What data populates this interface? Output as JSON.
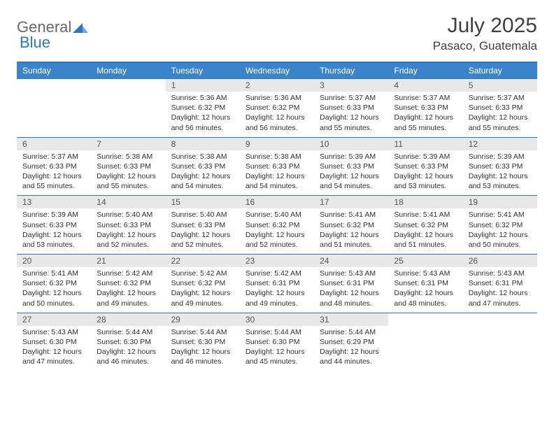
{
  "brand": {
    "general": "General",
    "blue": "Blue"
  },
  "title": "July 2025",
  "location": "Pasaco, Guatemala",
  "colors": {
    "header_bg": "#3a84cc",
    "header_border": "#2f76bb",
    "daynum_bg": "#e8e8e8",
    "text": "#303030",
    "logo_gray": "#686868",
    "logo_blue": "#2f76bb"
  },
  "day_headers": [
    "Sunday",
    "Monday",
    "Tuesday",
    "Wednesday",
    "Thursday",
    "Friday",
    "Saturday"
  ],
  "weeks": [
    {
      "nums": [
        "",
        "",
        "1",
        "2",
        "3",
        "4",
        "5"
      ],
      "cells": [
        null,
        null,
        {
          "sr": "Sunrise: 5:36 AM",
          "ss": "Sunset: 6:32 PM",
          "dl": "Daylight: 12 hours and 56 minutes."
        },
        {
          "sr": "Sunrise: 5:36 AM",
          "ss": "Sunset: 6:32 PM",
          "dl": "Daylight: 12 hours and 56 minutes."
        },
        {
          "sr": "Sunrise: 5:37 AM",
          "ss": "Sunset: 6:33 PM",
          "dl": "Daylight: 12 hours and 55 minutes."
        },
        {
          "sr": "Sunrise: 5:37 AM",
          "ss": "Sunset: 6:33 PM",
          "dl": "Daylight: 12 hours and 55 minutes."
        },
        {
          "sr": "Sunrise: 5:37 AM",
          "ss": "Sunset: 6:33 PM",
          "dl": "Daylight: 12 hours and 55 minutes."
        }
      ]
    },
    {
      "nums": [
        "6",
        "7",
        "8",
        "9",
        "10",
        "11",
        "12"
      ],
      "cells": [
        {
          "sr": "Sunrise: 5:37 AM",
          "ss": "Sunset: 6:33 PM",
          "dl": "Daylight: 12 hours and 55 minutes."
        },
        {
          "sr": "Sunrise: 5:38 AM",
          "ss": "Sunset: 6:33 PM",
          "dl": "Daylight: 12 hours and 55 minutes."
        },
        {
          "sr": "Sunrise: 5:38 AM",
          "ss": "Sunset: 6:33 PM",
          "dl": "Daylight: 12 hours and 54 minutes."
        },
        {
          "sr": "Sunrise: 5:38 AM",
          "ss": "Sunset: 6:33 PM",
          "dl": "Daylight: 12 hours and 54 minutes."
        },
        {
          "sr": "Sunrise: 5:39 AM",
          "ss": "Sunset: 6:33 PM",
          "dl": "Daylight: 12 hours and 54 minutes."
        },
        {
          "sr": "Sunrise: 5:39 AM",
          "ss": "Sunset: 6:33 PM",
          "dl": "Daylight: 12 hours and 53 minutes."
        },
        {
          "sr": "Sunrise: 5:39 AM",
          "ss": "Sunset: 6:33 PM",
          "dl": "Daylight: 12 hours and 53 minutes."
        }
      ]
    },
    {
      "nums": [
        "13",
        "14",
        "15",
        "16",
        "17",
        "18",
        "19"
      ],
      "cells": [
        {
          "sr": "Sunrise: 5:39 AM",
          "ss": "Sunset: 6:33 PM",
          "dl": "Daylight: 12 hours and 53 minutes."
        },
        {
          "sr": "Sunrise: 5:40 AM",
          "ss": "Sunset: 6:33 PM",
          "dl": "Daylight: 12 hours and 52 minutes."
        },
        {
          "sr": "Sunrise: 5:40 AM",
          "ss": "Sunset: 6:33 PM",
          "dl": "Daylight: 12 hours and 52 minutes."
        },
        {
          "sr": "Sunrise: 5:40 AM",
          "ss": "Sunset: 6:32 PM",
          "dl": "Daylight: 12 hours and 52 minutes."
        },
        {
          "sr": "Sunrise: 5:41 AM",
          "ss": "Sunset: 6:32 PM",
          "dl": "Daylight: 12 hours and 51 minutes."
        },
        {
          "sr": "Sunrise: 5:41 AM",
          "ss": "Sunset: 6:32 PM",
          "dl": "Daylight: 12 hours and 51 minutes."
        },
        {
          "sr": "Sunrise: 5:41 AM",
          "ss": "Sunset: 6:32 PM",
          "dl": "Daylight: 12 hours and 50 minutes."
        }
      ]
    },
    {
      "nums": [
        "20",
        "21",
        "22",
        "23",
        "24",
        "25",
        "26"
      ],
      "cells": [
        {
          "sr": "Sunrise: 5:41 AM",
          "ss": "Sunset: 6:32 PM",
          "dl": "Daylight: 12 hours and 50 minutes."
        },
        {
          "sr": "Sunrise: 5:42 AM",
          "ss": "Sunset: 6:32 PM",
          "dl": "Daylight: 12 hours and 49 minutes."
        },
        {
          "sr": "Sunrise: 5:42 AM",
          "ss": "Sunset: 6:32 PM",
          "dl": "Daylight: 12 hours and 49 minutes."
        },
        {
          "sr": "Sunrise: 5:42 AM",
          "ss": "Sunset: 6:31 PM",
          "dl": "Daylight: 12 hours and 49 minutes."
        },
        {
          "sr": "Sunrise: 5:43 AM",
          "ss": "Sunset: 6:31 PM",
          "dl": "Daylight: 12 hours and 48 minutes."
        },
        {
          "sr": "Sunrise: 5:43 AM",
          "ss": "Sunset: 6:31 PM",
          "dl": "Daylight: 12 hours and 48 minutes."
        },
        {
          "sr": "Sunrise: 5:43 AM",
          "ss": "Sunset: 6:31 PM",
          "dl": "Daylight: 12 hours and 47 minutes."
        }
      ]
    },
    {
      "nums": [
        "27",
        "28",
        "29",
        "30",
        "31",
        "",
        ""
      ],
      "cells": [
        {
          "sr": "Sunrise: 5:43 AM",
          "ss": "Sunset: 6:30 PM",
          "dl": "Daylight: 12 hours and 47 minutes."
        },
        {
          "sr": "Sunrise: 5:44 AM",
          "ss": "Sunset: 6:30 PM",
          "dl": "Daylight: 12 hours and 46 minutes."
        },
        {
          "sr": "Sunrise: 5:44 AM",
          "ss": "Sunset: 6:30 PM",
          "dl": "Daylight: 12 hours and 46 minutes."
        },
        {
          "sr": "Sunrise: 5:44 AM",
          "ss": "Sunset: 6:30 PM",
          "dl": "Daylight: 12 hours and 45 minutes."
        },
        {
          "sr": "Sunrise: 5:44 AM",
          "ss": "Sunset: 6:29 PM",
          "dl": "Daylight: 12 hours and 44 minutes."
        },
        null,
        null
      ]
    }
  ]
}
